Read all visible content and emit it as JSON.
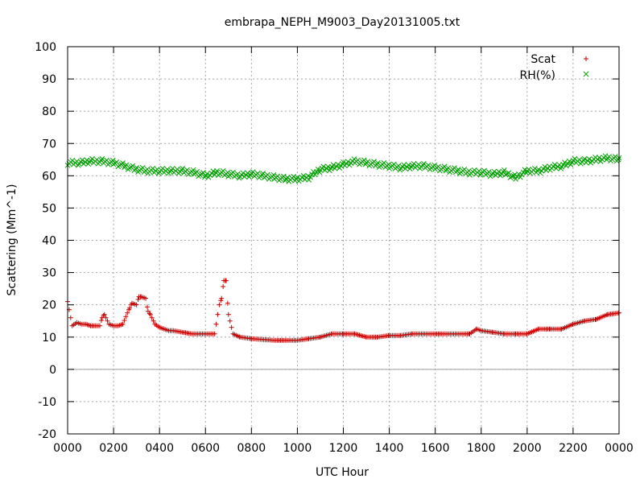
{
  "chart_data": {
    "type": "scatter",
    "title": "embrapa_NEPH_M9003_Day20131005.txt",
    "xlabel": "UTC Hour",
    "ylabel": "Scattering (Mm^-1)",
    "xlim": [
      0,
      24
    ],
    "ylim": [
      -20,
      100
    ],
    "x_tick_labels": [
      "0000",
      "0200",
      "0400",
      "0600",
      "0800",
      "1000",
      "1200",
      "1400",
      "1600",
      "1800",
      "2000",
      "2200",
      "0000"
    ],
    "y_tick_labels": [
      "-20",
      "-10",
      "0",
      "10",
      "20",
      "30",
      "40",
      "50",
      "60",
      "70",
      "80",
      "90",
      "100"
    ],
    "grid": true,
    "legend_position": "top-right",
    "colors": {
      "scat": "#cc0000",
      "rh": "#00a000"
    },
    "series": [
      {
        "name": "Scat",
        "marker": "+",
        "x": [
          0.0,
          0.2,
          0.4,
          0.6,
          0.8,
          1.0,
          1.2,
          1.4,
          1.5,
          1.6,
          1.8,
          2.0,
          2.2,
          2.4,
          2.6,
          2.7,
          2.8,
          3.0,
          3.1,
          3.2,
          3.4,
          3.5,
          3.6,
          3.8,
          4.0,
          4.2,
          4.4,
          4.6,
          5.0,
          5.4,
          6.0,
          6.4,
          6.6,
          6.7,
          6.8,
          6.9,
          7.0,
          7.2,
          7.5,
          8.0,
          9.0,
          10.0,
          10.5,
          11.0,
          11.5,
          12.0,
          12.5,
          13.0,
          13.5,
          14.0,
          14.5,
          15.0,
          16.0,
          17.0,
          17.5,
          17.8,
          18.0,
          18.5,
          19.0,
          19.5,
          20.0,
          20.5,
          21.0,
          21.5,
          22.0,
          22.5,
          23.0,
          23.5,
          24.0
        ],
        "y": [
          21.0,
          13.5,
          14.5,
          14.0,
          14.0,
          13.5,
          13.5,
          13.5,
          16.0,
          17.0,
          14.0,
          13.5,
          13.5,
          14.0,
          17.5,
          19.0,
          20.5,
          20.0,
          22.5,
          22.5,
          22.0,
          18.0,
          17.0,
          14.0,
          13.0,
          12.5,
          12.0,
          12.0,
          11.5,
          11.0,
          11.0,
          11.0,
          20.0,
          22.0,
          27.5,
          27.5,
          17.0,
          11.0,
          10.0,
          9.5,
          9.0,
          9.0,
          9.5,
          10.0,
          11.0,
          11.0,
          11.0,
          10.0,
          10.0,
          10.5,
          10.5,
          11.0,
          11.0,
          11.0,
          11.0,
          12.5,
          12.0,
          11.5,
          11.0,
          11.0,
          11.0,
          12.5,
          12.5,
          12.5,
          14.0,
          15.0,
          15.5,
          17.0,
          17.5
        ]
      },
      {
        "name": "RH(%)",
        "marker": "x",
        "x": [
          0.0,
          0.5,
          1.0,
          1.5,
          2.0,
          2.5,
          3.0,
          3.5,
          4.0,
          4.5,
          5.0,
          5.5,
          6.0,
          6.5,
          7.0,
          7.5,
          8.0,
          8.5,
          9.0,
          9.5,
          10.0,
          10.5,
          11.0,
          11.5,
          12.0,
          12.5,
          13.0,
          13.5,
          14.0,
          14.5,
          15.0,
          15.5,
          16.0,
          16.5,
          17.0,
          17.5,
          18.0,
          18.5,
          19.0,
          19.5,
          20.0,
          20.5,
          21.0,
          21.5,
          22.0,
          22.5,
          23.0,
          23.5,
          24.0
        ],
        "y": [
          64.0,
          64.0,
          64.5,
          64.5,
          64.0,
          63.0,
          62.0,
          61.5,
          61.5,
          61.5,
          61.5,
          61.0,
          60.0,
          61.0,
          60.5,
          60.0,
          60.5,
          60.0,
          59.5,
          59.0,
          59.0,
          59.5,
          62.0,
          62.5,
          63.5,
          64.5,
          64.0,
          63.5,
          63.0,
          62.5,
          63.0,
          63.0,
          62.5,
          62.0,
          61.5,
          61.0,
          61.0,
          60.5,
          61.0,
          59.5,
          61.5,
          61.5,
          62.5,
          63.0,
          64.5,
          64.5,
          65.0,
          65.5,
          65.0
        ]
      }
    ]
  }
}
